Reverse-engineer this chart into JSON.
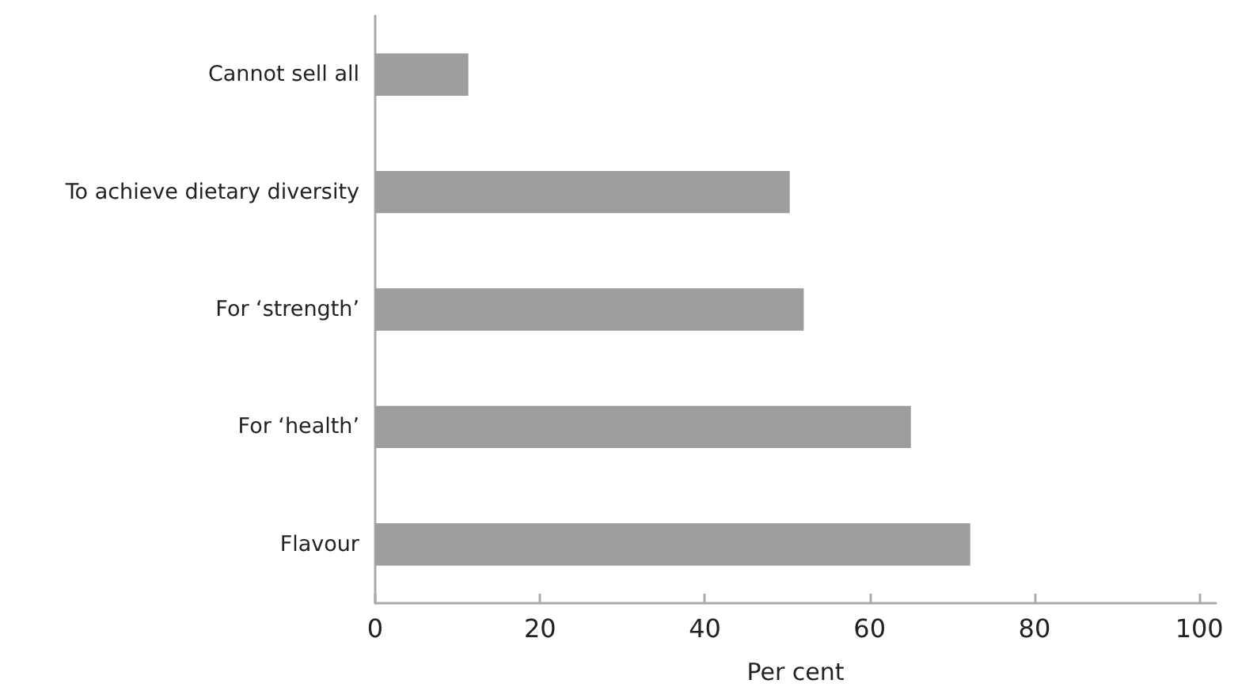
{
  "chart_data": {
    "type": "bar",
    "orientation": "horizontal",
    "xlabel": "Per cent",
    "categories": [
      "Cannot sell all",
      "To achieve dietary diversity",
      "For ‘strength’",
      "For ‘health’",
      "Flavour"
    ],
    "values": [
      11.3,
      50.3,
      52,
      65,
      72.2
    ],
    "color": "#9d9d9c",
    "xlim": [
      0,
      102
    ],
    "xticks": [
      0,
      20,
      40,
      60,
      80,
      100
    ],
    "grid": false
  }
}
